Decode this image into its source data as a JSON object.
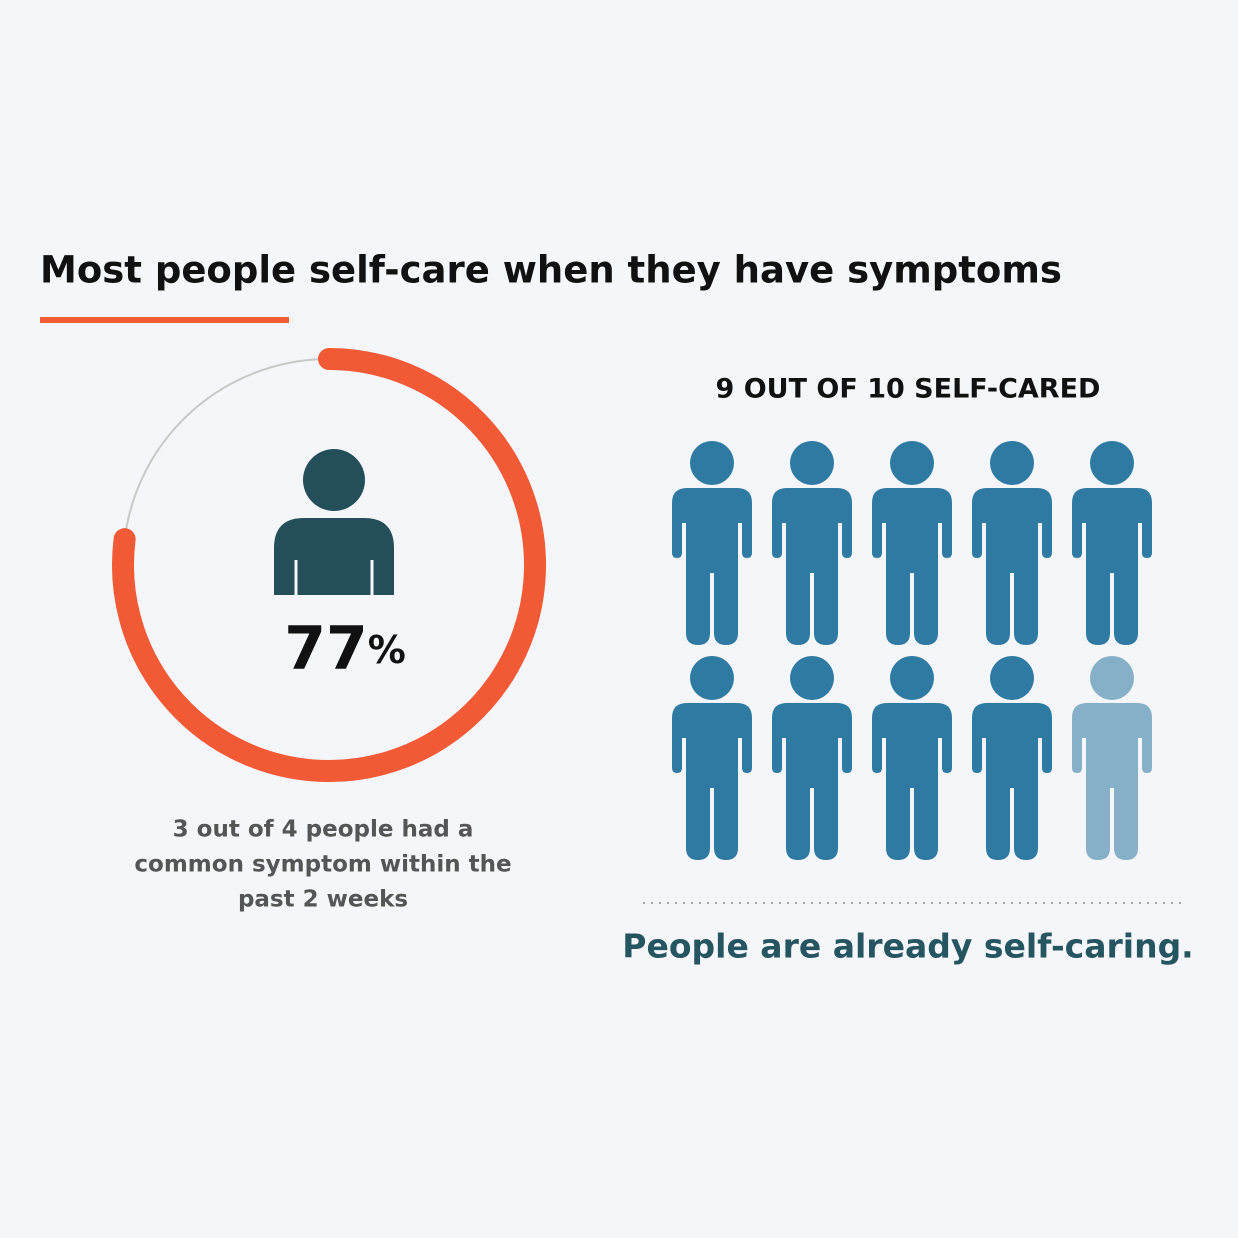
{
  "header": {
    "title": "Most people self-care when they have symptoms"
  },
  "ring": {
    "value": 77,
    "unit": "%",
    "max": 100,
    "caption": [
      "3 out of 4 people had a",
      "common symptom within the",
      "past 2 weeks"
    ]
  },
  "pictogram": {
    "title": "9 OUT OF 10 SELF-CARED",
    "filled": 9,
    "total": 10,
    "footer": "People are already self-caring."
  }
}
